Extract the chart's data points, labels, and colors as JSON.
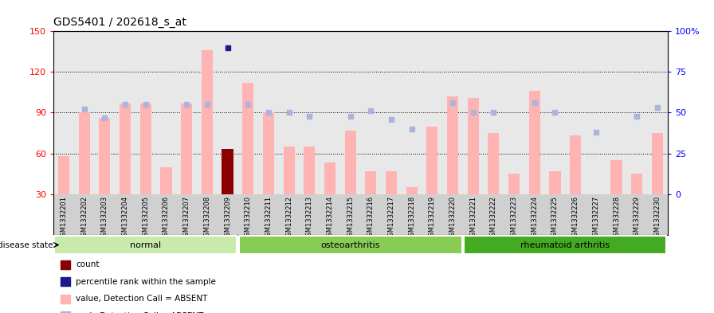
{
  "title": "GDS5401 / 202618_s_at",
  "samples": [
    "GSM1332201",
    "GSM1332202",
    "GSM1332203",
    "GSM1332204",
    "GSM1332205",
    "GSM1332206",
    "GSM1332207",
    "GSM1332208",
    "GSM1332209",
    "GSM1332210",
    "GSM1332211",
    "GSM1332212",
    "GSM1332213",
    "GSM1332214",
    "GSM1332215",
    "GSM1332216",
    "GSM1332217",
    "GSM1332218",
    "GSM1332219",
    "GSM1332220",
    "GSM1332221",
    "GSM1332222",
    "GSM1332223",
    "GSM1332224",
    "GSM1332225",
    "GSM1332226",
    "GSM1332227",
    "GSM1332228",
    "GSM1332229",
    "GSM1332230"
  ],
  "bar_values": [
    58,
    90,
    86,
    97,
    97,
    50,
    97,
    136,
    63,
    112,
    90,
    65,
    65,
    53,
    77,
    47,
    47,
    35,
    80,
    102,
    101,
    75,
    45,
    106,
    47,
    73,
    30,
    55,
    45,
    75
  ],
  "bar_is_dark": [
    0,
    0,
    0,
    0,
    0,
    0,
    0,
    0,
    1,
    0,
    0,
    0,
    0,
    0,
    0,
    0,
    0,
    0,
    0,
    0,
    0,
    0,
    0,
    0,
    0,
    0,
    0,
    0,
    0,
    0
  ],
  "rank_values": [
    null,
    52,
    47,
    55,
    55,
    null,
    55,
    55,
    90,
    55,
    50,
    50,
    48,
    null,
    48,
    51,
    46,
    40,
    null,
    56,
    50,
    50,
    null,
    56,
    50,
    null,
    38,
    null,
    48,
    53
  ],
  "rank_is_dark": [
    0,
    0,
    0,
    0,
    0,
    0,
    0,
    0,
    1,
    0,
    0,
    0,
    0,
    0,
    0,
    0,
    0,
    0,
    0,
    0,
    0,
    0,
    0,
    0,
    0,
    0,
    0,
    0,
    0,
    0
  ],
  "groups": [
    {
      "label": "normal",
      "start": 0,
      "end": 9,
      "color": "#c8eaaa"
    },
    {
      "label": "osteoarthritis",
      "start": 9,
      "end": 20,
      "color": "#88cc55"
    },
    {
      "label": "rheumatoid arthritis",
      "start": 20,
      "end": 30,
      "color": "#44aa22"
    }
  ],
  "ylim_left": [
    30,
    150
  ],
  "ylim_right": [
    0,
    100
  ],
  "yticks_left": [
    30,
    60,
    90,
    120,
    150
  ],
  "yticks_right": [
    0,
    25,
    50,
    75,
    100
  ],
  "ytick_labels_right": [
    "0",
    "25",
    "50",
    "75",
    "100%"
  ],
  "grid_values": [
    60,
    90,
    120
  ],
  "bar_absent_color": "#ffb3b3",
  "bar_dark_color": "#8b0000",
  "rank_absent_color": "#aab4dd",
  "rank_dark_color": "#1a1a8c",
  "bg_color": "#ffffff",
  "plot_bg_color": "#e8e8e8",
  "legend_items": [
    {
      "color": "#8b0000",
      "label": "count"
    },
    {
      "color": "#1a1a8c",
      "label": "percentile rank within the sample"
    },
    {
      "color": "#ffb3b3",
      "label": "value, Detection Call = ABSENT"
    },
    {
      "color": "#aab4dd",
      "label": "rank, Detection Call = ABSENT"
    }
  ]
}
